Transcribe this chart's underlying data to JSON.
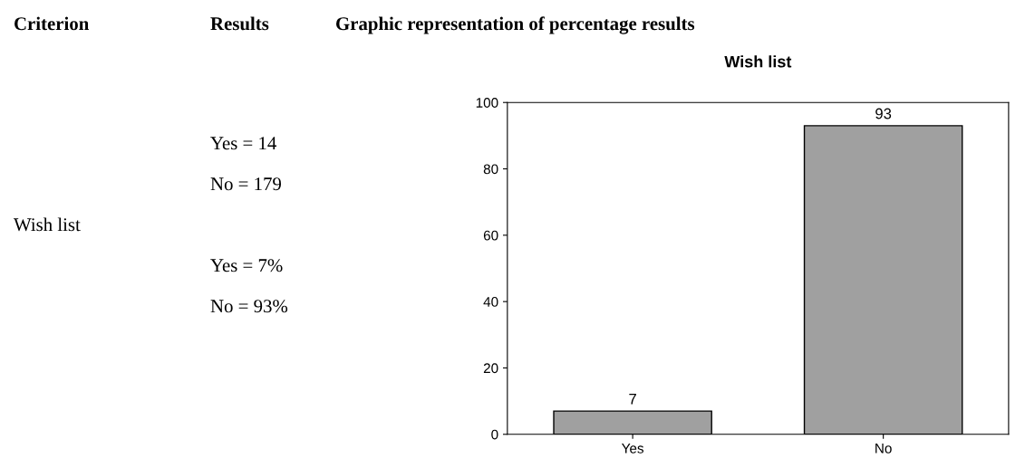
{
  "chart_data": {
    "type": "bar",
    "title": "Wish list",
    "categories": [
      "Yes",
      "No"
    ],
    "values": [
      7,
      93
    ],
    "color": "#a0a0a0",
    "ylim": [
      0,
      100
    ],
    "yticks": [
      0,
      20,
      40,
      60,
      80,
      100
    ],
    "grid": false,
    "data_labels": true,
    "annotations": [
      "Criterion",
      "Results",
      "Graphic representation of percentage results",
      "Wish list",
      "Yes = 14",
      "No = 179",
      "Yes = 7%",
      "No = 93%"
    ]
  }
}
